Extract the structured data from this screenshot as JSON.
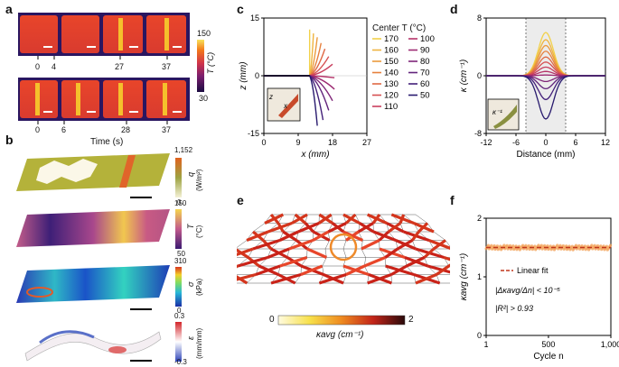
{
  "panels": {
    "a": "a",
    "b": "b",
    "c": "c",
    "d": "d",
    "e": "e",
    "f": "f"
  },
  "panel_a": {
    "row1_ticks": [
      "0",
      "4",
      "27",
      "37"
    ],
    "row2_ticks": [
      "0",
      "6",
      "28",
      "37"
    ],
    "time_label": "Time (s)",
    "colorbar": {
      "max": "150",
      "min": "30",
      "label": "T (°C)"
    }
  },
  "panel_b": {
    "q": {
      "max": "1,152",
      "min": "0",
      "label": "q",
      "unit": "(W/m²)"
    },
    "T": {
      "max": "150",
      "min": "50",
      "label": "T",
      "unit": "(°C)"
    },
    "sigma": {
      "max": "310",
      "min": "0",
      "label": "σ",
      "unit": "(kPa)"
    },
    "eps": {
      "max": "0.3",
      "min": "-0.3",
      "label": "ε",
      "unit": "(mm/mm)"
    }
  },
  "panel_e": {
    "cb_min": "0",
    "cb_max": "2",
    "cb_label": "κavg (cm⁻¹)"
  },
  "chart_data": [
    {
      "type": "line",
      "panel": "c",
      "xlabel": "x (mm)",
      "ylabel": "z (mm)",
      "xlim": [
        0,
        27
      ],
      "ylim": [
        -15,
        15
      ],
      "xticks": [
        "0",
        "9",
        "18",
        "27"
      ],
      "yticks": [
        "15",
        "0",
        "-15"
      ],
      "legend_title": "Center T (°C)",
      "legend_col1": [
        "170",
        "160",
        "150",
        "140",
        "130",
        "120",
        "110"
      ],
      "legend_col2": [
        "100",
        "90",
        "80",
        "70",
        "60",
        "50"
      ],
      "series_colors": [
        "#f2d14a",
        "#efb43f",
        "#eb9a3c",
        "#e6803d",
        "#df6844",
        "#d65051",
        "#c93f5e",
        "#b53369",
        "#9c2a72",
        "#7f2679",
        "#61247c",
        "#43207a",
        "#281a6e"
      ],
      "tip_x": [
        12,
        13,
        14,
        15,
        16,
        17,
        18,
        18.5,
        18.5,
        18,
        17,
        15.5,
        14
      ],
      "tip_z": [
        12,
        11,
        10,
        8.5,
        7,
        5,
        3,
        -0.5,
        -3.5,
        -6.5,
        -9,
        -11.5,
        -13
      ],
      "inset_labels": {
        "z": "z",
        "x": "x"
      }
    },
    {
      "type": "line",
      "panel": "d",
      "xlabel": "Distance (mm)",
      "ylabel": "κ (cm⁻¹)",
      "xlim": [
        -12,
        12
      ],
      "ylim": [
        -8,
        8
      ],
      "xticks": [
        "-12",
        "-6",
        "0",
        "6",
        "12"
      ],
      "yticks": [
        "8",
        "0",
        "-8"
      ],
      "peaks": [
        6,
        5,
        4.2,
        3.4,
        2.6,
        1.9,
        1.2,
        0.6,
        0.1,
        -0.8,
        -1.8,
        -3.3,
        -6
      ],
      "inset_label": "κ⁻¹"
    },
    {
      "type": "scatter",
      "panel": "f",
      "xlabel": "Cycle n",
      "ylabel": "κavg (cm⁻¹)",
      "xlim": [
        1,
        1000
      ],
      "ylim": [
        0,
        2
      ],
      "xticks": [
        "1",
        "500",
        "1,000"
      ],
      "yticks": [
        "2",
        "1",
        "0"
      ],
      "mean_value": 1.5,
      "legend": "Linear fit",
      "annot1": "|Δκavg/Δn| < 10⁻⁵",
      "annot2": "|R²| > 0.93"
    }
  ]
}
